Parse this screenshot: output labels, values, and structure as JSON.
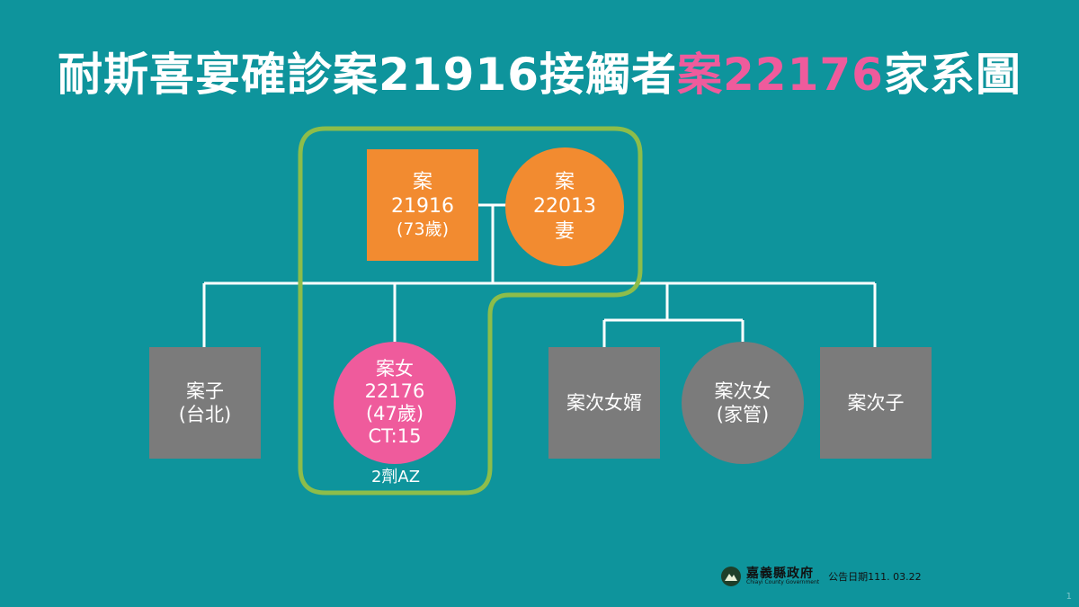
{
  "title": {
    "prefix": "耐斯喜宴確診案21916接觸者",
    "highlight": "案22176",
    "suffix": "家系圖"
  },
  "nodes": {
    "case_21916": {
      "line1": "案",
      "line2": "21916",
      "line3": "(73歲)"
    },
    "case_22013": {
      "line1": "案",
      "line2": "22013",
      "line3": "妻"
    },
    "case_22176": {
      "line1": "案女",
      "line2": "22176",
      "line3": "(47歲)",
      "line4": "CT:15"
    },
    "son": {
      "line1": "案子",
      "line2": "(台北)"
    },
    "son_in_law": {
      "line1": "案次女婿"
    },
    "second_daughter": {
      "line1": "案次女",
      "line2": "(家管)"
    },
    "second_son": {
      "line1": "案次子"
    }
  },
  "vaccine_note": "2劑AZ",
  "footer": {
    "logo_name": "嘉義縣政府",
    "logo_en": "Chiayi County Government",
    "notice": "公告日期111. 03.22"
  },
  "page_number": "1",
  "colors": {
    "background": "#0e949c",
    "confirmed_highlight": "#ef5b9c",
    "index_cases": "#f28b30",
    "others": "#7b7b7b",
    "cluster_outline": "#8dbd4a"
  }
}
